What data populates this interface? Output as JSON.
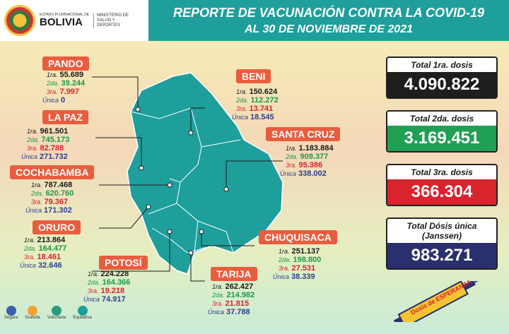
{
  "header": {
    "logo_small": "ESTADO PLURINACIONAL DE",
    "logo_country": "BOLIVIA",
    "ministry": "MINISTERIO DE SALUD Y DEPORTES",
    "title_line1": "REPORTE DE VACUNACIÓN CONTRA LA COVID-19",
    "title_line2": "AL 30 DE NOVIEMBRE DE 2021"
  },
  "labels": {
    "dose1": "1ra.",
    "dose2": "2da.",
    "dose3": "3ra.",
    "single": "Única"
  },
  "departments": {
    "pando": {
      "name": "PANDO",
      "d1": "55.689",
      "d2": "39.244",
      "d3": "7.997",
      "u": "0"
    },
    "lapaz": {
      "name": "LA PAZ",
      "d1": "961.501",
      "d2": "745.173",
      "d3": "82.788",
      "u": "271.732"
    },
    "cochabamba": {
      "name": "COCHABAMBA",
      "d1": "787.468",
      "d2": "620.760",
      "d3": "79.367",
      "u": "171.302"
    },
    "oruro": {
      "name": "ORURO",
      "d1": "213.864",
      "d2": "164.477",
      "d3": "18.461",
      "u": "32.646"
    },
    "potosi": {
      "name": "POTOSÍ",
      "d1": "224.228",
      "d2": "164.366",
      "d3": "19.218",
      "u": "74.917"
    },
    "beni": {
      "name": "BENI",
      "d1": "150.624",
      "d2": "112.272",
      "d3": "13.741",
      "u": "18.545"
    },
    "santacruz": {
      "name": "SANTA CRUZ",
      "d1": "1.183.884",
      "d2": "909.377",
      "d3": "95.386",
      "u": "338.002"
    },
    "chuquisaca": {
      "name": "CHUQUISACA",
      "d1": "251.137",
      "d2": "198.800",
      "d3": "27.531",
      "u": "38.339"
    },
    "tarija": {
      "name": "TARIJA",
      "d1": "262.427",
      "d2": "214.982",
      "d3": "21.815",
      "u": "37.788"
    }
  },
  "totals": {
    "first": {
      "label": "Total 1ra. dosis",
      "value": "4.090.822",
      "color": "#1e1e1e"
    },
    "second": {
      "label": "Total 2da. dosis",
      "value": "3.169.451",
      "color": "#1fa055"
    },
    "third": {
      "label": "Total 3ra. dosis",
      "value": "366.304",
      "color": "#d9232d"
    },
    "single": {
      "label": "Total Dósis única (Janssen)",
      "value": "983.271",
      "color": "#2a2f6e"
    }
  },
  "footer": {
    "i1": "Segura",
    "i2": "Gratuita",
    "i3": "Voluntaria",
    "i4": "Equitativa"
  },
  "campaign_logo_text": "Dosis de ESPERANZA"
}
